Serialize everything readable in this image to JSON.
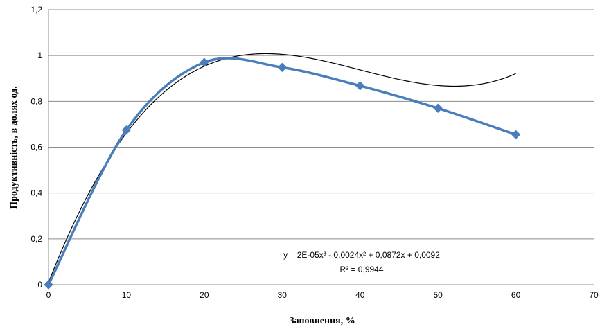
{
  "chart_data": {
    "type": "scatter",
    "title": "",
    "xlabel": "Заповнення, %",
    "ylabel": "Продуктивність,  в долях од.",
    "xlim": [
      0,
      70
    ],
    "ylim": [
      0,
      1.2
    ],
    "x_ticks": [
      "0",
      "10",
      "20",
      "30",
      "40",
      "50",
      "60",
      "70"
    ],
    "y_ticks": [
      "0",
      "0,2",
      "0,4",
      "0,6",
      "0,8",
      "1",
      "1,2"
    ],
    "grid": "horizontal",
    "legend": "none",
    "series": [
      {
        "x": [
          0,
          10,
          20,
          30,
          40,
          50,
          60
        ],
        "y": [
          0,
          0.675,
          0.97,
          0.948,
          0.868,
          0.77,
          0.655
        ],
        "style": "smoothed line with diamond markers",
        "color": "#4a7ebb"
      }
    ],
    "trendline": {
      "type": "polynomial",
      "order": 3,
      "coefficients": [
        2e-05,
        -0.0024,
        0.0872,
        0.0092
      ],
      "color": "#000000",
      "equation": "y = 2E-05x³ - 0,0024x² + 0,0872x + 0,0092",
      "r_squared": "R² = 0,9944"
    }
  }
}
